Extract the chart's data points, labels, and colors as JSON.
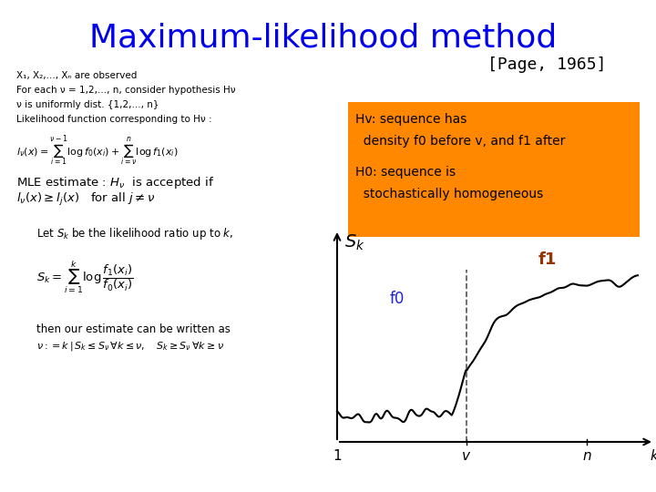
{
  "title": "Maximum-likelihood method",
  "title_color": "#0000EE",
  "title_fontsize": 26,
  "page_ref": "[Page, 1965]",
  "page_ref_color": "#000000",
  "page_ref_fontsize": 13,
  "bg_color": "#FFFFFF",
  "orange_box_lines": [
    "Hv: sequence has",
    "  density f0 before v, and f1 after",
    "",
    "H0: sequence is",
    "  stochastically homogeneous"
  ],
  "orange_box_color": "#FF8800",
  "orange_box_text_color": "#000000",
  "left_lines_top": [
    "X₁, X₂,..., Xₙ are observed",
    "For each ν = 1,2,..., n, consider hypothesis Hν",
    "ν is uniformly dist. {1,2,..., n}",
    "Likelihood function corresponding to Hν :"
  ],
  "label_f0": "f0",
  "label_f1": "f1",
  "label_f0_color": "#2222CC",
  "label_f1_color": "#993300",
  "graph_xlabel_1": "1",
  "graph_xlabel_v": "v",
  "graph_xlabel_n": "n",
  "graph_xlabel_k": "k",
  "graph_ylabel": "S",
  "graph_ylabel_sub": "k"
}
